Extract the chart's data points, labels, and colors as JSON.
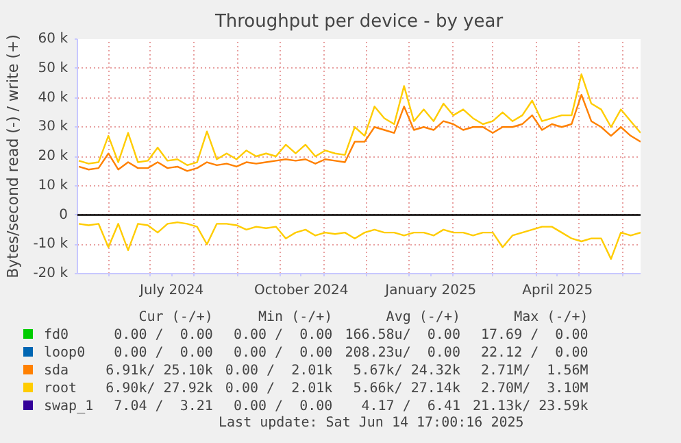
{
  "chart_data": {
    "type": "line",
    "title": "Throughput per device - by year",
    "ylabel": "Bytes/second read (-) / write (+)",
    "x": [
      "2024-05-11",
      "2024-05-18",
      "2024-05-25",
      "2024-06-01",
      "2024-06-08",
      "2024-06-15",
      "2024-06-22",
      "2024-06-29",
      "2024-07-06",
      "2024-07-13",
      "2024-07-20",
      "2024-07-27",
      "2024-08-03",
      "2024-08-10",
      "2024-08-17",
      "2024-08-24",
      "2024-08-31",
      "2024-09-07",
      "2024-09-14",
      "2024-09-21",
      "2024-09-28",
      "2024-10-05",
      "2024-10-12",
      "2024-10-19",
      "2024-10-26",
      "2024-11-02",
      "2024-11-09",
      "2024-11-16",
      "2024-11-23",
      "2024-11-30",
      "2024-12-07",
      "2024-12-14",
      "2024-12-21",
      "2024-12-28",
      "2025-01-04",
      "2025-01-11",
      "2025-01-18",
      "2025-01-25",
      "2025-02-01",
      "2025-02-08",
      "2025-02-15",
      "2025-02-22",
      "2025-03-01",
      "2025-03-08",
      "2025-03-15",
      "2025-03-22",
      "2025-03-29",
      "2025-04-05",
      "2025-04-12",
      "2025-04-19",
      "2025-04-26",
      "2025-05-03",
      "2025-05-10",
      "2025-05-17",
      "2025-05-24",
      "2025-05-31",
      "2025-06-07",
      "2025-06-14"
    ],
    "series": [
      {
        "name": "fd0",
        "color": "#00cc00",
        "values": [
          null,
          null,
          null,
          null,
          null,
          null,
          null,
          null,
          null,
          null,
          null,
          null,
          null,
          null,
          null,
          null,
          null,
          null,
          null,
          null,
          null,
          null,
          null,
          null,
          null,
          null,
          null,
          null,
          null,
          null,
          null,
          null,
          null,
          null,
          null,
          null,
          null,
          null,
          null,
          null,
          null,
          null,
          null,
          null,
          null,
          null,
          null,
          null,
          null,
          null,
          null,
          null,
          null,
          null,
          null,
          null,
          null,
          null
        ]
      },
      {
        "name": "loop0",
        "color": "#0066b3",
        "values": [
          null,
          null,
          null,
          null,
          null,
          null,
          null,
          null,
          null,
          null,
          null,
          null,
          null,
          null,
          null,
          null,
          null,
          null,
          null,
          null,
          null,
          null,
          null,
          null,
          null,
          null,
          null,
          null,
          null,
          null,
          null,
          null,
          null,
          null,
          null,
          null,
          null,
          null,
          null,
          null,
          null,
          null,
          null,
          null,
          null,
          null,
          null,
          null,
          null,
          null,
          null,
          null,
          null,
          null,
          null,
          null,
          null,
          null
        ]
      },
      {
        "name": "sda",
        "color": "#ff8000",
        "values": [
          16500,
          15500,
          16000,
          21000,
          15500,
          18000,
          16000,
          16000,
          18000,
          16000,
          16500,
          15000,
          16000,
          18000,
          17000,
          17500,
          16500,
          18000,
          17500,
          18000,
          18500,
          19000,
          18500,
          19000,
          17500,
          19000,
          18500,
          18000,
          25000,
          25000,
          30000,
          29000,
          28000,
          37000,
          29000,
          30000,
          29000,
          32000,
          31000,
          29000,
          30000,
          30000,
          28000,
          30000,
          30000,
          31000,
          34000,
          29000,
          31000,
          30000,
          31000,
          41000,
          32000,
          30000,
          27000,
          30000,
          27000,
          25000
        ]
      },
      {
        "name": "root",
        "color": "#ffcc00",
        "values": [
          18500,
          17500,
          18000,
          27000,
          18000,
          28000,
          18000,
          18500,
          23000,
          18500,
          19000,
          17000,
          18000,
          28500,
          19000,
          21000,
          19000,
          22000,
          20000,
          21000,
          20000,
          24000,
          21000,
          24000,
          20000,
          22000,
          21000,
          20500,
          30000,
          27000,
          37000,
          33000,
          31000,
          44000,
          32000,
          36000,
          32000,
          38000,
          34000,
          36000,
          33000,
          31000,
          32000,
          35000,
          32000,
          34000,
          39000,
          32000,
          33000,
          34000,
          34000,
          48000,
          38000,
          36000,
          30000,
          36000,
          32000,
          28000
        ]
      },
      {
        "name": "swap_1",
        "color": "#330099",
        "values": [
          null,
          null,
          null,
          null,
          null,
          null,
          null,
          null,
          null,
          null,
          null,
          null,
          null,
          null,
          null,
          null,
          null,
          null,
          null,
          null,
          null,
          null,
          null,
          null,
          null,
          null,
          null,
          null,
          null,
          null,
          null,
          null,
          null,
          null,
          null,
          null,
          null,
          null,
          null,
          null,
          null,
          null,
          null,
          null,
          null,
          null,
          null,
          null,
          null,
          null,
          null,
          null,
          null,
          null,
          null,
          null,
          null,
          null
        ]
      },
      {
        "color": "#ffcc00",
        "values": [
          -3000,
          -3500,
          -3000,
          -11000,
          -3000,
          -12000,
          -3000,
          -3500,
          -6000,
          -3000,
          -2500,
          -3000,
          -4000,
          -10000,
          -3000,
          -3000,
          -3500,
          -5000,
          -4000,
          -4500,
          -4000,
          -8000,
          -6000,
          -5000,
          -7000,
          -6000,
          -6500,
          -6000,
          -8000,
          -6000,
          -5000,
          -6000,
          -6000,
          -7000,
          -6000,
          -6000,
          -7000,
          -5000,
          -6000,
          -6000,
          -7000,
          -6000,
          -6000,
          -11000,
          -7000,
          -6000,
          -5000,
          -4000,
          -4000,
          -6000,
          -8000,
          -9000,
          -8000,
          -8000,
          -15000,
          -6000,
          -7000,
          -6000
        ]
      }
    ],
    "xlim": [
      "2024-05-10",
      "2025-06-14"
    ],
    "xticks": [
      {
        "value": "2024-06-01",
        "label": null
      },
      {
        "value": "2024-07-01",
        "label": null
      },
      {
        "value": "2024-07-16",
        "label": "July 2024"
      },
      {
        "value": "2024-08-01",
        "label": null
      },
      {
        "value": "2024-09-01",
        "label": null
      },
      {
        "value": "2024-10-01",
        "label": null
      },
      {
        "value": "2024-10-16",
        "label": "October 2024"
      },
      {
        "value": "2024-11-01",
        "label": null
      },
      {
        "value": "2024-12-01",
        "label": null
      },
      {
        "value": "2025-01-01",
        "label": null
      },
      {
        "value": "2025-01-16",
        "label": "January 2025"
      },
      {
        "value": "2025-02-01",
        "label": null
      },
      {
        "value": "2025-03-01",
        "label": null
      },
      {
        "value": "2025-04-01",
        "label": null
      },
      {
        "value": "2025-04-16",
        "label": "April 2025"
      },
      {
        "value": "2025-05-01",
        "label": null
      },
      {
        "value": "2025-06-01",
        "label": null
      }
    ],
    "ylim": [
      -20000,
      60000
    ],
    "yticks": [
      {
        "value": -20000,
        "label": "-20 k"
      },
      {
        "value": -10000,
        "label": "-10 k"
      },
      {
        "value": 0,
        "label": "0"
      },
      {
        "value": 10000,
        "label": "10 k"
      },
      {
        "value": 20000,
        "label": "20 k"
      },
      {
        "value": 30000,
        "label": "30 k"
      },
      {
        "value": 40000,
        "label": "40 k"
      },
      {
        "value": 50000,
        "label": "50 k"
      },
      {
        "value": 60000,
        "label": "60 k"
      }
    ],
    "ref_lines": [
      {
        "axis": "y",
        "value": 0,
        "color": "#000000"
      }
    ],
    "grid": true,
    "legend": "bottom",
    "annotations": [
      "Cur (-/+)",
      "Min (-/+)",
      "Avg (-/+)",
      "Max (-/+)",
      "0.00 /  0.00",
      "0.00 /  0.00",
      "166.58u/  0.00",
      "17.69 /  0.00",
      "0.00 /  0.00",
      "0.00 /  0.00",
      "208.23u/  0.00",
      "22.12 /  0.00",
      "6.91k/ 25.10k",
      "0.00 /  2.01k",
      "5.67k/ 24.32k",
      "2.71M/  1.56M",
      "6.90k/ 27.92k",
      "0.00 /  2.01k",
      "5.66k/ 27.14k",
      "2.70M/  3.10M",
      "7.04 /  3.21",
      "0.00 /  0.00",
      "4.17 /  6.41",
      "21.13k/ 23.59k",
      "Last update: Sat Jun 14 17:00:16 2025"
    ]
  }
}
